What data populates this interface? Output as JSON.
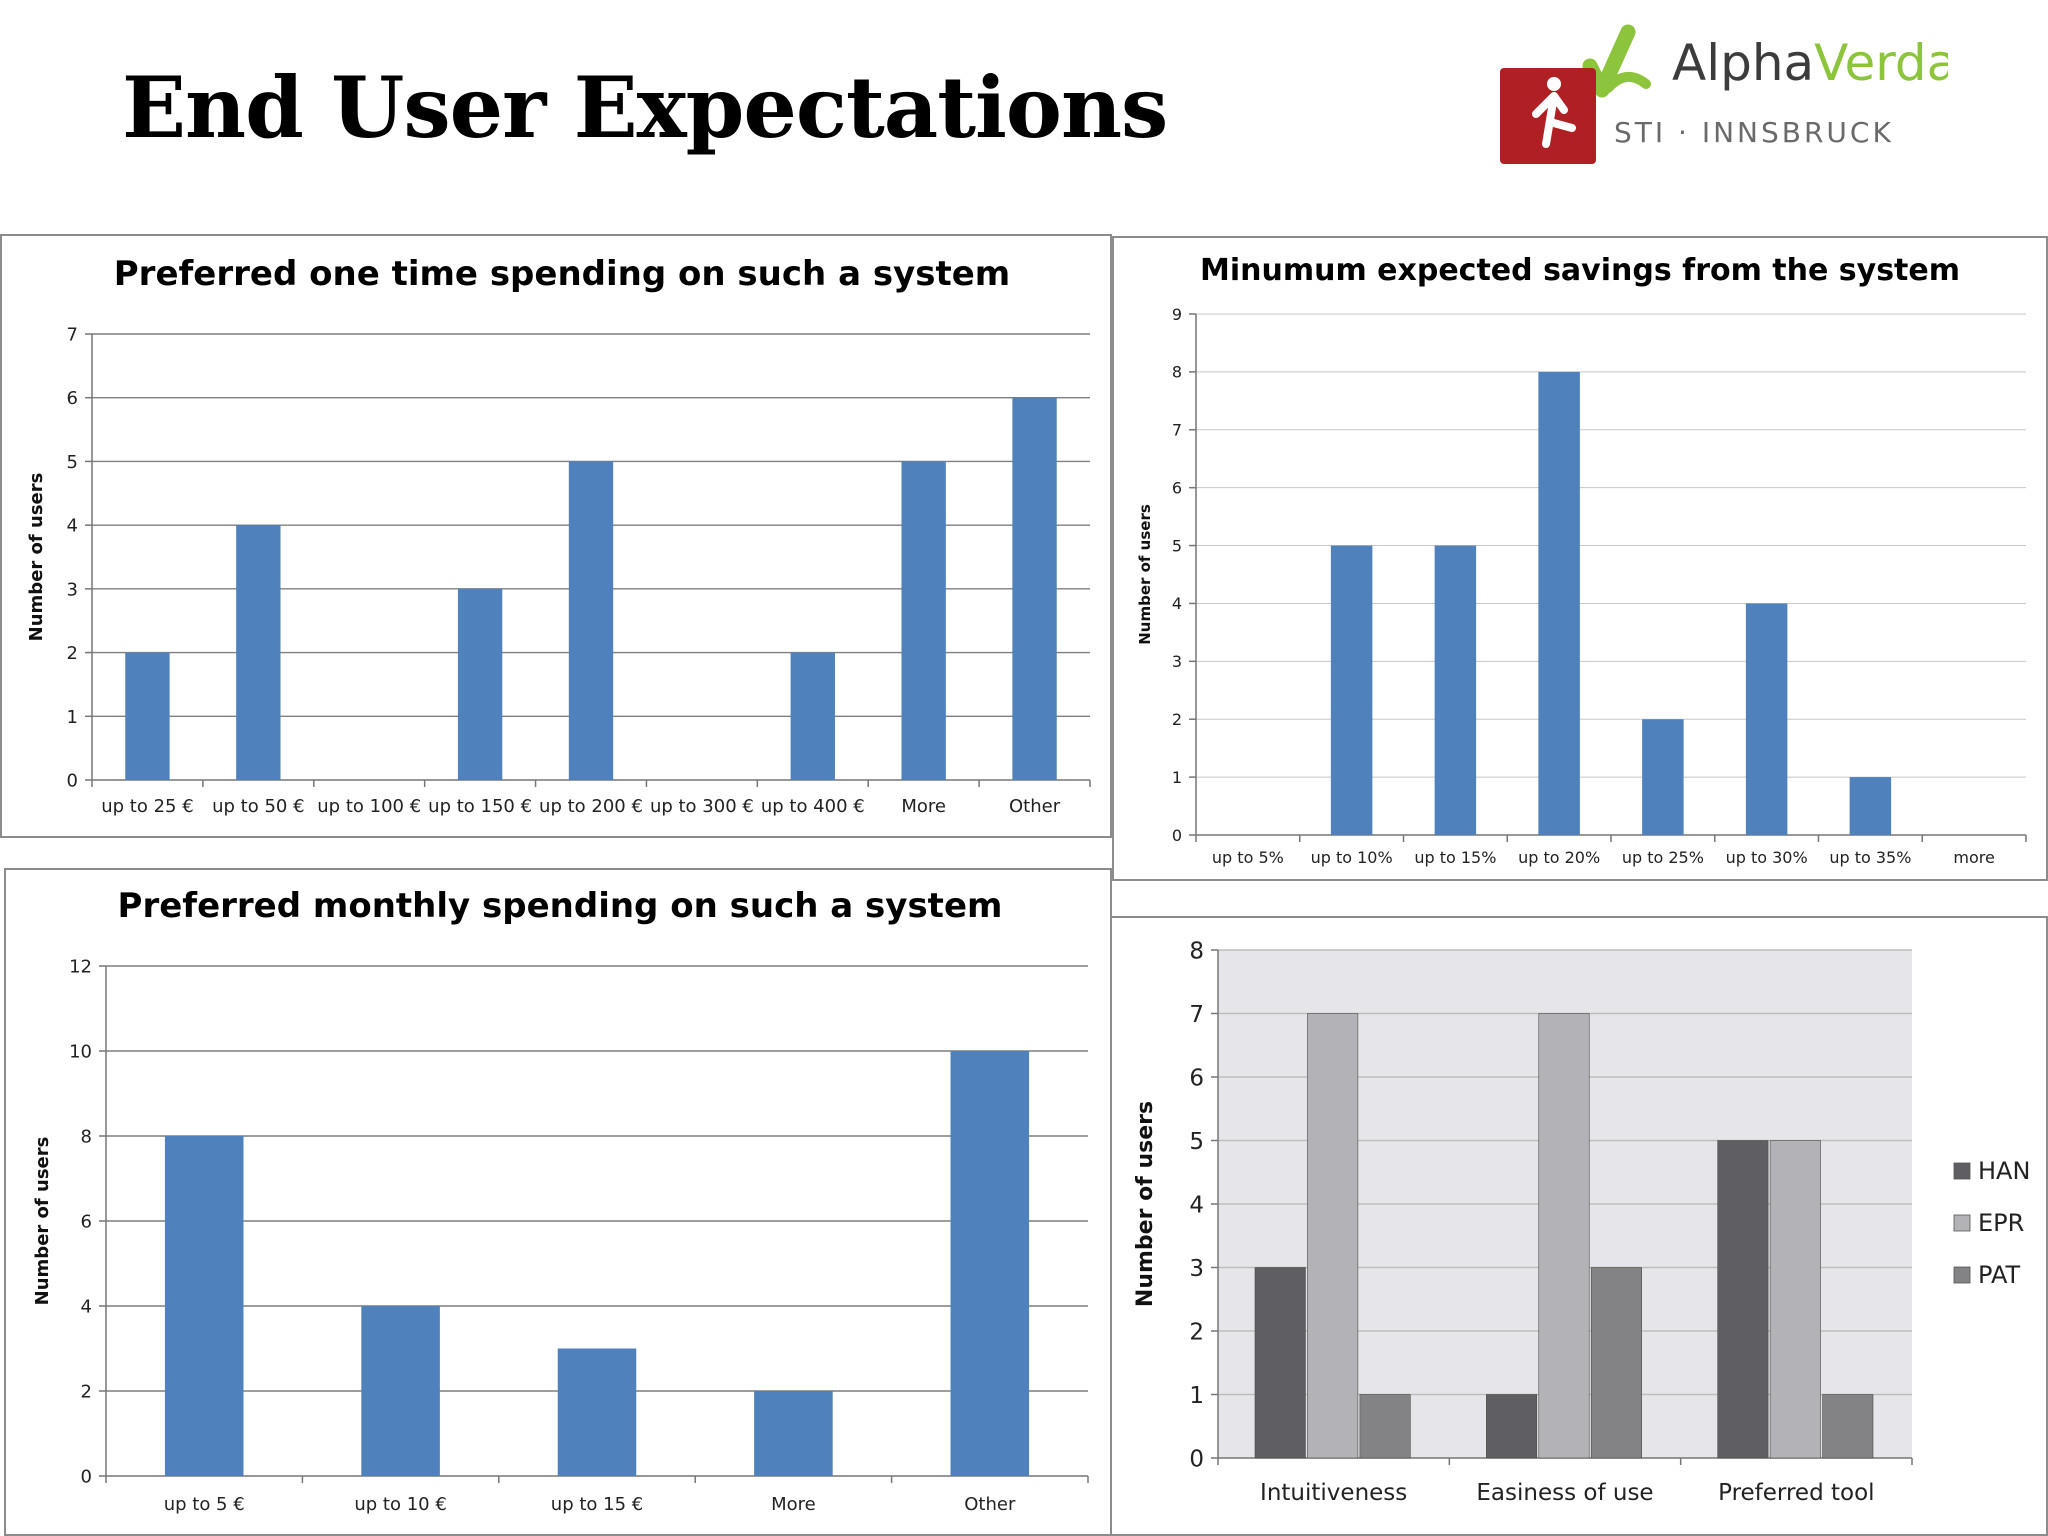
{
  "slide": {
    "title": "End User Expectations"
  },
  "logo": {
    "brand": "AlphaVerda",
    "brand_part1": "Alpha",
    "brand_part2": "Verda",
    "org": "STI · INNSBRUCK"
  },
  "colors": {
    "bar_blue": "#4f81bd",
    "han": "#5f5f63",
    "epr": "#b3b3b7",
    "pat": "#838386",
    "plot_gray": "#e6e6ea",
    "logo_green": "#8cc43c",
    "logo_red": "#b01f24"
  },
  "chart_data": [
    {
      "type": "bar",
      "title": "Preferred one time spending on such a system",
      "ylabel": "Number of users",
      "categories": [
        "up to 25 €",
        "up to 50 €",
        "up to 100 €",
        "up to 150 €",
        "up to 200 €",
        "up to 300 €",
        "up to 400 €",
        "More",
        "Other"
      ],
      "values": [
        2,
        4,
        0,
        3,
        5,
        0,
        2,
        5,
        6
      ],
      "ylim": [
        0,
        7
      ],
      "yticks": [
        0,
        1,
        2,
        3,
        4,
        5,
        6,
        7
      ],
      "grid": true
    },
    {
      "type": "bar",
      "title": "Minumum expected savings from the system",
      "ylabel": "Number of users",
      "categories": [
        "up to 5%",
        "up to 10%",
        "up to 15%",
        "up to 20%",
        "up to 25%",
        "up to 30%",
        "up to 35%",
        "more"
      ],
      "values": [
        0,
        5,
        5,
        8,
        2,
        4,
        1,
        0
      ],
      "ylim": [
        0,
        9
      ],
      "yticks": [
        0,
        1,
        2,
        3,
        4,
        5,
        6,
        7,
        8,
        9
      ],
      "grid": true
    },
    {
      "type": "bar",
      "title": "Preferred monthly spending on such a system",
      "ylabel": "Number of users",
      "categories": [
        "up to 5 €",
        "up to 10 €",
        "up to 15 €",
        "More",
        "Other"
      ],
      "values": [
        8,
        4,
        3,
        2,
        10
      ],
      "ylim": [
        0,
        12
      ],
      "yticks": [
        0,
        2,
        4,
        6,
        8,
        10,
        12
      ],
      "grid": true
    },
    {
      "type": "bar",
      "ylabel": "Number of users",
      "categories": [
        "Intuitiveness",
        "Easiness of use",
        "Preferred tool"
      ],
      "series": [
        {
          "name": "HAN",
          "values": [
            3,
            1,
            5
          ]
        },
        {
          "name": "EPR",
          "values": [
            7,
            7,
            5
          ]
        },
        {
          "name": "PAT",
          "values": [
            1,
            3,
            1
          ]
        }
      ],
      "ylim": [
        0,
        8
      ],
      "yticks": [
        0,
        1,
        2,
        3,
        4,
        5,
        6,
        7,
        8
      ],
      "grid": true,
      "legend": "right"
    }
  ]
}
